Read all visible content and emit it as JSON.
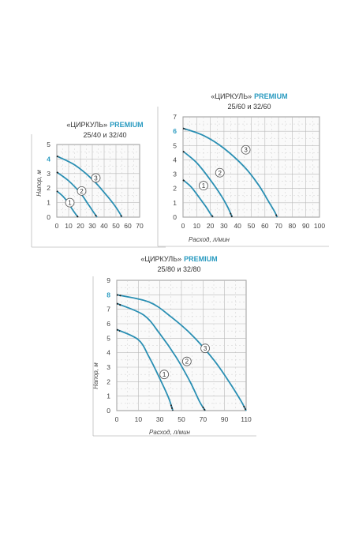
{
  "chart_data": [
    {
      "type": "line",
      "title": "«ЦИРКУЛЬ»",
      "title_accent": "PREMIUM",
      "subtitle": "25/40 и 32/40",
      "xlabel": "",
      "ylabel": "Напор, м",
      "xlim": [
        0,
        70
      ],
      "ylim": [
        0,
        5
      ],
      "xticks": [
        "0",
        "10",
        "20",
        "30",
        "40",
        "50",
        "60",
        "70"
      ],
      "yticks": [
        "0",
        "1",
        "2",
        "3",
        "4",
        "5"
      ],
      "highlight_ytick": "4",
      "grid": true,
      "line_color": "#2a8fb3",
      "series": [
        {
          "name": "1",
          "x": [
            0,
            5,
            10,
            13,
            16,
            18
          ],
          "y": [
            1.8,
            1.45,
            0.95,
            0.55,
            0.2,
            0
          ]
        },
        {
          "name": "2",
          "x": [
            0,
            10,
            20,
            26,
            31,
            34
          ],
          "y": [
            3.1,
            2.5,
            1.65,
            0.95,
            0.35,
            0
          ]
        },
        {
          "name": "3",
          "x": [
            0,
            15,
            30,
            40,
            48,
            53,
            55
          ],
          "y": [
            4.2,
            3.6,
            2.6,
            1.7,
            0.9,
            0.3,
            0
          ]
        }
      ],
      "markers": [
        {
          "label": "1",
          "x": 11,
          "y": 1.0
        },
        {
          "label": "2",
          "x": 21,
          "y": 1.8
        },
        {
          "label": "3",
          "x": 33,
          "y": 2.7
        }
      ]
    },
    {
      "type": "line",
      "title": "«ЦИРКУЛЬ»",
      "title_accent": "PREMIUM",
      "subtitle": "25/60 и 32/60",
      "xlabel": "Расход, л/мин",
      "ylabel": "",
      "xlim": [
        0,
        100
      ],
      "ylim": [
        0,
        7
      ],
      "xticks": [
        "0",
        "10",
        "20",
        "30",
        "40",
        "50",
        "60",
        "70",
        "80",
        "90",
        "100"
      ],
      "yticks": [
        "0",
        "1",
        "2",
        "3",
        "4",
        "5",
        "6",
        "7"
      ],
      "highlight_ytick": "6",
      "grid": true,
      "line_color": "#2a8fb3",
      "series": [
        {
          "name": "1",
          "x": [
            0,
            6,
            12,
            17,
            20,
            22
          ],
          "y": [
            2.6,
            2.1,
            1.35,
            0.7,
            0.25,
            0
          ]
        },
        {
          "name": "2",
          "x": [
            0,
            10,
            20,
            28,
            33,
            36
          ],
          "y": [
            4.6,
            3.8,
            2.6,
            1.5,
            0.65,
            0
          ]
        },
        {
          "name": "3",
          "x": [
            0,
            15,
            30,
            45,
            55,
            62,
            67,
            69
          ],
          "y": [
            6.2,
            5.7,
            4.8,
            3.5,
            2.3,
            1.2,
            0.4,
            0
          ]
        }
      ],
      "markers": [
        {
          "label": "1",
          "x": 15,
          "y": 2.2
        },
        {
          "label": "2",
          "x": 27,
          "y": 3.1
        },
        {
          "label": "3",
          "x": 46,
          "y": 4.7
        }
      ]
    },
    {
      "type": "line",
      "title": "«ЦИРКУЛЬ»",
      "title_accent": "PREMIUM",
      "subtitle": "25/80 и 32/80",
      "xlabel": "Расход, л/мин",
      "ylabel": "Напор, м",
      "xlim": [
        0,
        110
      ],
      "ylim": [
        0,
        9
      ],
      "xticks": [
        "0",
        "10",
        "30",
        "50",
        "70",
        "90",
        "110"
      ],
      "xtick_values": [
        0,
        10,
        30,
        50,
        70,
        90,
        110
      ],
      "yticks": [
        "0",
        "1",
        "2",
        "3",
        "4",
        "5",
        "6",
        "7",
        "8",
        "9"
      ],
      "highlight_ytick": "8",
      "grid": true,
      "line_color": "#2a8fb3",
      "series": [
        {
          "name": "1",
          "x": [
            0,
            10,
            20,
            30,
            38,
            42
          ],
          "y": [
            5.6,
            4.9,
            3.7,
            2.2,
            0.9,
            0
          ]
        },
        {
          "name": "2",
          "x": [
            0,
            15,
            30,
            45,
            58,
            67,
            72
          ],
          "y": [
            7.4,
            6.6,
            5.3,
            3.7,
            2.0,
            0.6,
            0
          ]
        },
        {
          "name": "3",
          "x": [
            0,
            20,
            40,
            60,
            80,
            95,
            105,
            110
          ],
          "y": [
            8.0,
            7.5,
            6.5,
            5.2,
            3.5,
            1.9,
            0.7,
            0
          ]
        }
      ],
      "markers": [
        {
          "label": "1",
          "x": 34,
          "y": 2.5
        },
        {
          "label": "2",
          "x": 55,
          "y": 3.4
        },
        {
          "label": "3",
          "x": 72,
          "y": 4.3
        }
      ]
    }
  ]
}
